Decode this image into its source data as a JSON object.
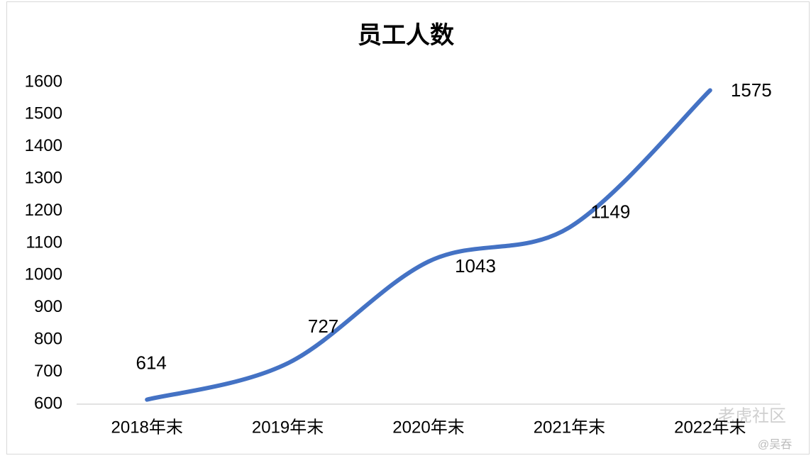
{
  "chart_data": {
    "type": "line",
    "title": "员工人数",
    "categories": [
      "2018年末",
      "2019年末",
      "2020年末",
      "2021年末",
      "2022年末"
    ],
    "series": [
      {
        "name": "员工人数",
        "color": "#4472c4",
        "values": [
          614,
          727,
          1043,
          1149,
          1575
        ]
      }
    ],
    "ylim": [
      600,
      1600
    ],
    "yticks": [
      600,
      700,
      800,
      900,
      1000,
      1100,
      1200,
      1300,
      1400,
      1500,
      1600
    ],
    "grid": false,
    "smooth": true
  },
  "watermark": {
    "site": "老虎社区",
    "author": "@吴吞"
  }
}
